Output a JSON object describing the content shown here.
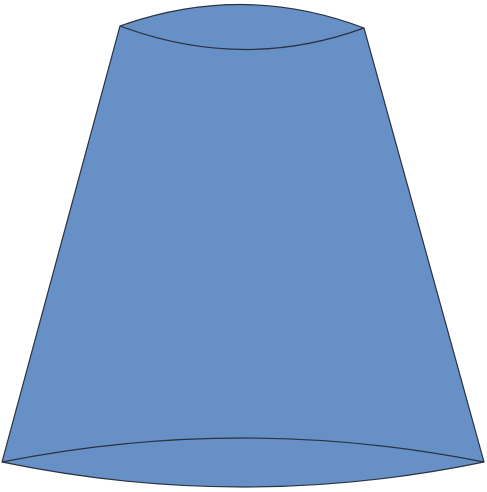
{
  "shape": {
    "kind": "truncated-cone",
    "fill_color": "#6690c6",
    "stroke_color": "#2a3240"
  }
}
